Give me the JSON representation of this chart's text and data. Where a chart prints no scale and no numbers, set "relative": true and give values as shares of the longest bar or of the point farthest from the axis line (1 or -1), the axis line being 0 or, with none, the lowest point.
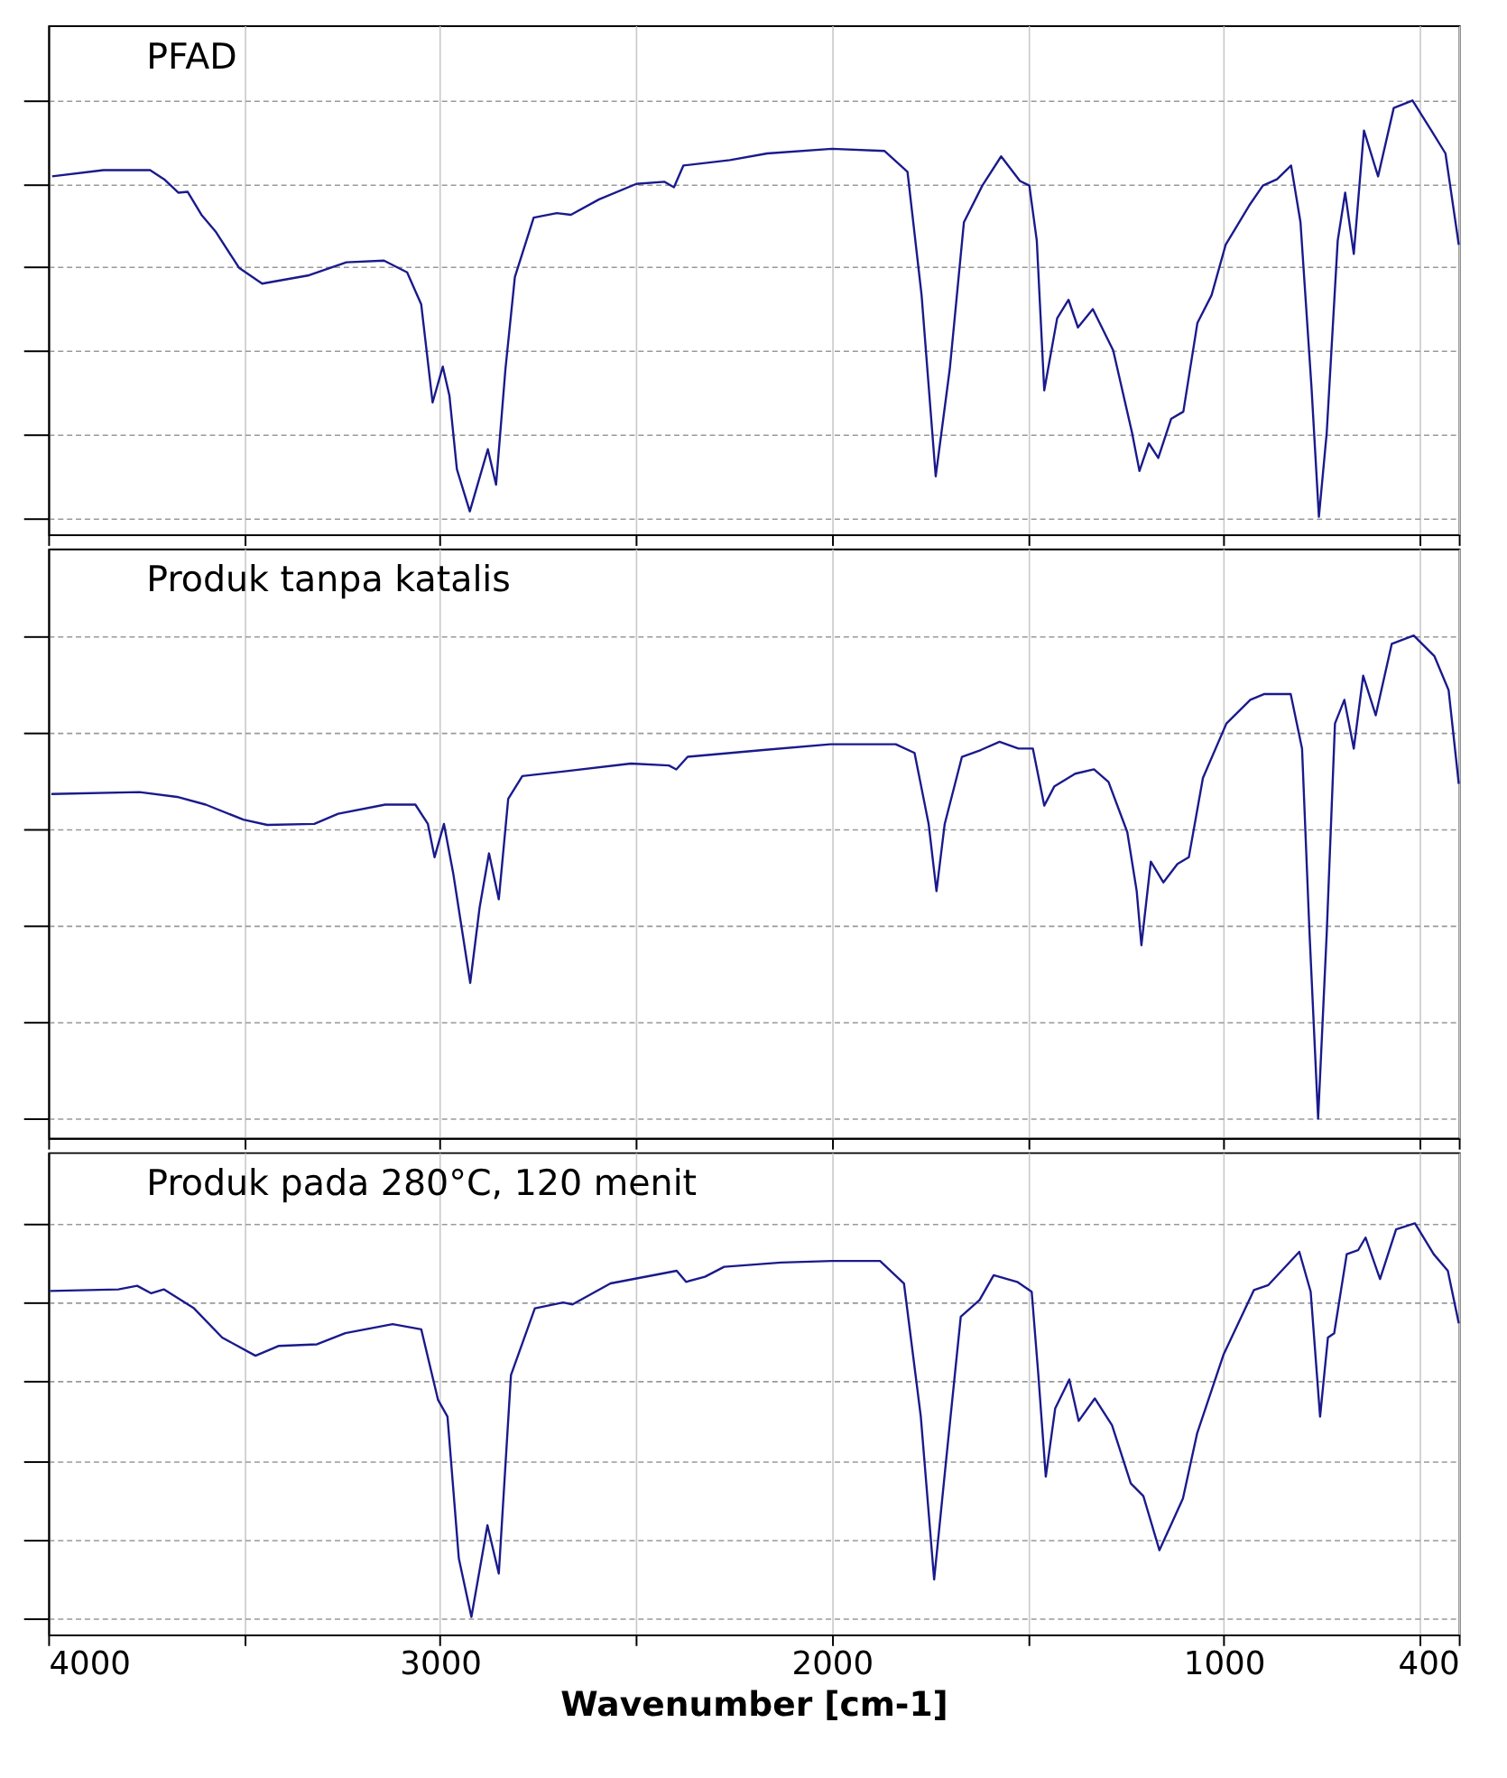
{
  "chart_data": [
    {
      "type": "line",
      "relative": true,
      "grid": true,
      "tick_labels": false,
      "xlim": [
        4000,
        400
      ],
      "xticks": [
        4000,
        {
          "value": 3500,
          "label": null
        },
        3000,
        {
          "value": 2500,
          "label": null
        },
        2000,
        {
          "value": 1500,
          "label": null
        },
        1000,
        {
          "value": 500,
          "label": null
        },
        400
      ],
      "series": [
        {
          "name": "PFAD",
          "color": "#1a1a8c",
          "x": [
            3990,
            3859,
            3740,
            3704,
            3668,
            3644,
            3609,
            3573,
            3513,
            3454,
            3334,
            3239,
            3143,
            3084,
            3048,
            3019,
            2993,
            2976,
            2957,
            2924,
            2878,
            2857,
            2833,
            2809,
            2761,
            2702,
            2666,
            2594,
            2499,
            2427,
            2403,
            2379,
            2260,
            2165,
            2000,
            1866,
            1807,
            1771,
            1735,
            1699,
            1663,
            1616,
            1568,
            1520,
            1496,
            1477,
            1458,
            1425,
            1396,
            1372,
            1334,
            1282,
            1234,
            1215,
            1191,
            1167,
            1134,
            1103,
            1067,
            1031,
            995,
            935,
            900,
            864,
            828,
            804,
            776,
            757,
            737,
            709,
            690,
            668,
            642,
            606,
            566,
            518,
            470,
            434,
            400
          ],
          "values": [
            0.818,
            0.833,
            0.833,
            0.811,
            0.779,
            0.781,
            0.726,
            0.686,
            0.599,
            0.561,
            0.581,
            0.612,
            0.616,
            0.588,
            0.511,
            0.276,
            0.362,
            0.292,
            0.116,
            0.015,
            0.164,
            0.079,
            0.357,
            0.577,
            0.719,
            0.73,
            0.726,
            0.763,
            0.8,
            0.805,
            0.792,
            0.844,
            0.857,
            0.873,
            0.884,
            0.879,
            0.829,
            0.533,
            0.099,
            0.357,
            0.708,
            0.796,
            0.866,
            0.807,
            0.796,
            0.664,
            0.305,
            0.478,
            0.522,
            0.456,
            0.5,
            0.401,
            0.204,
            0.112,
            0.178,
            0.143,
            0.237,
            0.254,
            0.467,
            0.533,
            0.654,
            0.748,
            0.796,
            0.811,
            0.844,
            0.708,
            0.314,
            0.002,
            0.204,
            0.664,
            0.779,
            0.632,
            0.928,
            0.818,
            0.982,
            1.0,
            0.928,
            0.873,
            0.654
          ]
        }
      ]
    },
    {
      "type": "line",
      "relative": true,
      "grid": true,
      "tick_labels": false,
      "xlim": [
        4000,
        400
      ],
      "xticks": [
        4000,
        {
          "value": 3500,
          "label": null
        },
        3000,
        {
          "value": 2500,
          "label": null
        },
        2000,
        {
          "value": 1500,
          "label": null
        },
        1000,
        {
          "value": 500,
          "label": null
        },
        400
      ],
      "series": [
        {
          "name": "Produk tanpa katalis",
          "color": "#1a1a8c",
          "x": [
            3992,
            3767,
            3671,
            3598,
            3502,
            3441,
            3321,
            3260,
            3140,
            3063,
            3031,
            3014,
            2990,
            2966,
            2923,
            2899,
            2875,
            2850,
            2826,
            2790,
            2682,
            2513,
            2416,
            2397,
            2368,
            2175,
            2004,
            1837,
            1789,
            1753,
            1733,
            1712,
            1668,
            1620,
            1572,
            1524,
            1487,
            1458,
            1432,
            1379,
            1331,
            1294,
            1246,
            1222,
            1210,
            1186,
            1154,
            1118,
            1089,
            1053,
            993,
            932,
            896,
            829,
            800,
            781,
            759,
            737,
            716,
            692,
            668,
            644,
            612,
            571,
            515,
            462,
            426,
            400
          ],
          "values": [
            0.672,
            0.676,
            0.666,
            0.65,
            0.619,
            0.608,
            0.61,
            0.631,
            0.65,
            0.65,
            0.61,
            0.541,
            0.61,
            0.506,
            0.281,
            0.437,
            0.549,
            0.454,
            0.662,
            0.709,
            0.719,
            0.735,
            0.731,
            0.723,
            0.749,
            0.763,
            0.775,
            0.775,
            0.757,
            0.61,
            0.471,
            0.61,
            0.749,
            0.763,
            0.78,
            0.766,
            0.766,
            0.648,
            0.688,
            0.714,
            0.723,
            0.697,
            0.593,
            0.471,
            0.359,
            0.532,
            0.489,
            0.527,
            0.541,
            0.705,
            0.818,
            0.867,
            0.879,
            0.879,
            0.766,
            0.385,
            0.0,
            0.385,
            0.818,
            0.867,
            0.766,
            0.917,
            0.835,
            0.983,
            1.0,
            0.957,
            0.887,
            0.693
          ]
        }
      ]
    },
    {
      "type": "line",
      "relative": true,
      "grid": true,
      "tick_labels": "x",
      "xlabel": "Wavenumber [cm-1]",
      "xlim": [
        4000,
        400
      ],
      "xticks": [
        4000,
        {
          "value": 3500,
          "label": null
        },
        3000,
        {
          "value": 2500,
          "label": null
        },
        2000,
        {
          "value": 1500,
          "label": null
        },
        1000,
        {
          "value": 500,
          "label": null
        },
        400
      ],
      "series": [
        {
          "name": "Produk pada 280°C, 120 menit",
          "color": "#1a1a8c",
          "x": [
            3995,
            3821,
            3773,
            3737,
            3705,
            3628,
            3556,
            3471,
            3411,
            3314,
            3242,
            3121,
            3048,
            3005,
            2981,
            2952,
            2920,
            2879,
            2850,
            2819,
            2758,
            2686,
            2662,
            2565,
            2396,
            2372,
            2324,
            2275,
            2130,
            2000,
            1877,
            1816,
            1773,
            1739,
            1708,
            1671,
            1623,
            1587,
            1527,
            1490,
            1473,
            1454,
            1430,
            1394,
            1370,
            1329,
            1285,
            1237,
            1205,
            1164,
            1135,
            1104,
            1068,
            1000,
            923,
            886,
            807,
            778,
            754,
            734,
            718,
            686,
            657,
            638,
            601,
            560,
            512,
            464,
            428,
            400
          ],
          "values": [
            0.829,
            0.833,
            0.842,
            0.823,
            0.833,
            0.785,
            0.711,
            0.665,
            0.69,
            0.694,
            0.722,
            0.745,
            0.732,
            0.553,
            0.511,
            0.152,
            0.004,
            0.236,
            0.114,
            0.616,
            0.785,
            0.8,
            0.795,
            0.848,
            0.88,
            0.852,
            0.865,
            0.89,
            0.901,
            0.905,
            0.905,
            0.848,
            0.511,
            0.099,
            0.405,
            0.764,
            0.806,
            0.869,
            0.852,
            0.827,
            0.616,
            0.359,
            0.532,
            0.605,
            0.5,
            0.557,
            0.489,
            0.342,
            0.31,
            0.173,
            0.236,
            0.304,
            0.468,
            0.669,
            0.831,
            0.844,
            0.928,
            0.827,
            0.511,
            0.711,
            0.722,
            0.922,
            0.932,
            0.964,
            0.859,
            0.985,
            1.0,
            0.922,
            0.88,
            0.747
          ]
        }
      ]
    }
  ]
}
